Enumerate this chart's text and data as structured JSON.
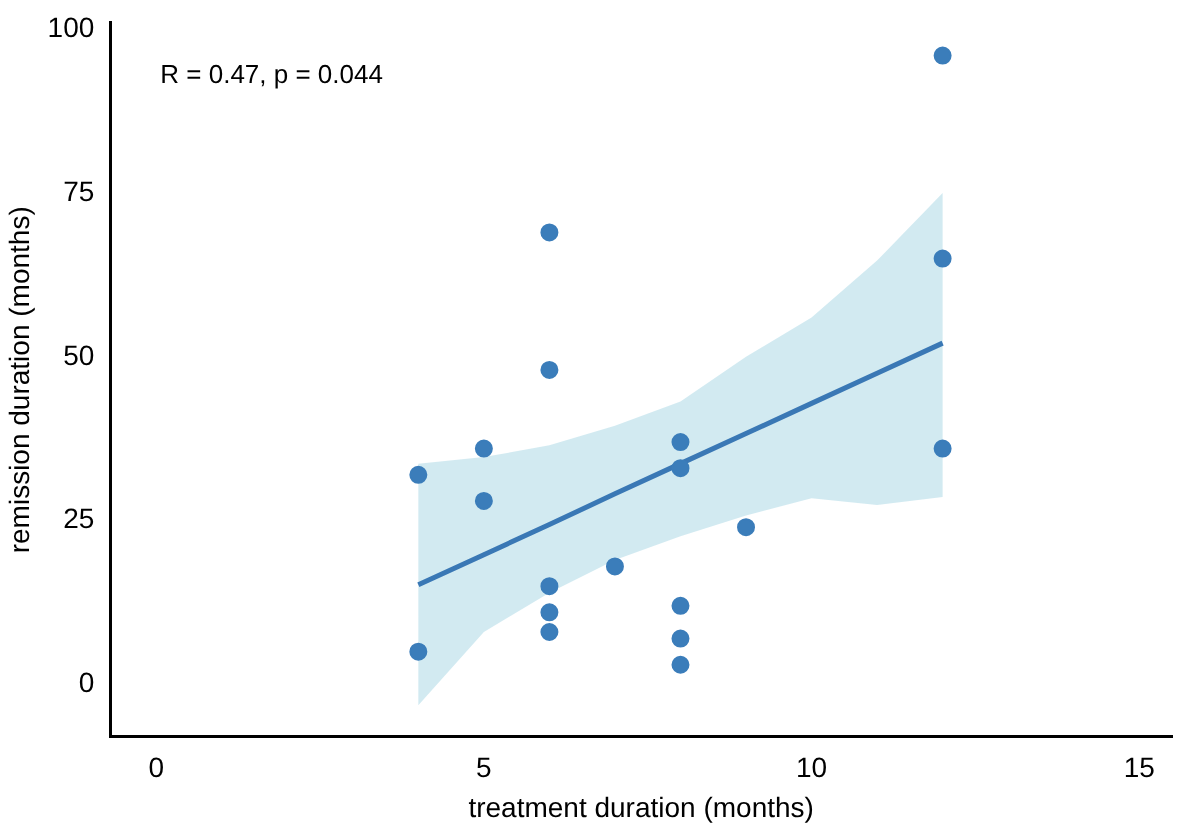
{
  "chart_data": {
    "type": "scatter",
    "xlabel": "treatment duration (months)",
    "ylabel": "remission duration (months)",
    "annotations": [
      "R = 0.47, p = 0.044"
    ],
    "xlim": [
      -0.7,
      15.5
    ],
    "xticks": [
      0,
      5,
      10,
      15
    ],
    "ylim": [
      -8,
      101
    ],
    "yticks": [
      0,
      25,
      50,
      75,
      100
    ],
    "grid": false,
    "legend": false,
    "marker": "circle",
    "series": [
      {
        "type": "scatter",
        "color": "#3b7dba",
        "x": [
          4,
          4,
          5,
          5,
          6,
          6,
          6,
          6,
          6,
          7,
          8,
          8,
          8,
          8,
          8,
          9,
          12,
          12,
          12
        ],
        "values": [
          32,
          5,
          36,
          28,
          69,
          48,
          15,
          11,
          8,
          18,
          37,
          33,
          12,
          7,
          3,
          24,
          96,
          65,
          36
        ]
      },
      {
        "type": "line",
        "color": "#3a78b5",
        "marker": "none",
        "line_style": "solid",
        "x": [
          4,
          5,
          6,
          7,
          8,
          9,
          10,
          11,
          12
        ],
        "values": [
          15.2,
          19.8,
          24.4,
          29.1,
          33.7,
          38.3,
          42.9,
          47.5,
          52.1
        ],
        "lower": [
          -3.2,
          8,
          14,
          19,
          22.6,
          25.8,
          28.4,
          27.4,
          28.6
        ],
        "upper": [
          33.7,
          34.7,
          36.5,
          39.5,
          43.2,
          50,
          56,
          64.7,
          75
        ]
      }
    ]
  }
}
